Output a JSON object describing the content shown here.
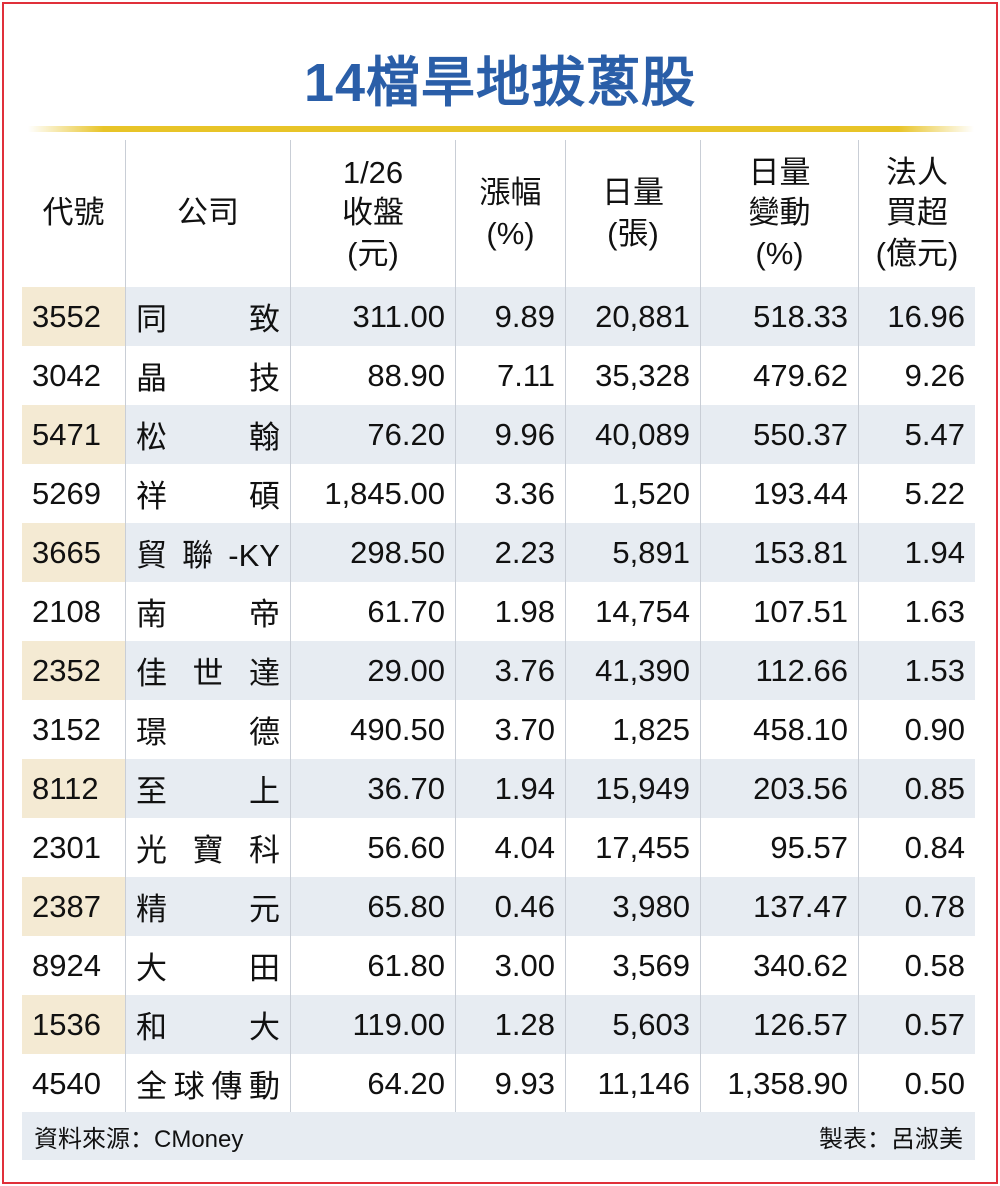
{
  "title": "14檔旱地拔蔥股",
  "table": {
    "header": [
      "代號",
      "公司",
      "1/26\n收盤\n(元)",
      "漲幅\n(%)",
      "日量\n(張)",
      "日量\n變動\n(%)",
      "法人\n買超\n(億元)"
    ],
    "rows": [
      [
        "3552",
        "同 致",
        "311.00",
        "9.89",
        "20,881",
        "518.33",
        "16.96"
      ],
      [
        "3042",
        "晶 技",
        "88.90",
        "7.11",
        "35,328",
        "479.62",
        "9.26"
      ],
      [
        "5471",
        "松 翰",
        "76.20",
        "9.96",
        "40,089",
        "550.37",
        "5.47"
      ],
      [
        "5269",
        "祥 碩",
        "1,845.00",
        "3.36",
        "1,520",
        "193.44",
        "5.22"
      ],
      [
        "3665",
        "貿聯-KY",
        "298.50",
        "2.23",
        "5,891",
        "153.81",
        "1.94"
      ],
      [
        "2108",
        "南 帝",
        "61.70",
        "1.98",
        "14,754",
        "107.51",
        "1.63"
      ],
      [
        "2352",
        "佳 世 達",
        "29.00",
        "3.76",
        "41,390",
        "112.66",
        "1.53"
      ],
      [
        "3152",
        "璟 德",
        "490.50",
        "3.70",
        "1,825",
        "458.10",
        "0.90"
      ],
      [
        "8112",
        "至 上",
        "36.70",
        "1.94",
        "15,949",
        "203.56",
        "0.85"
      ],
      [
        "2301",
        "光 寶 科",
        "56.60",
        "4.04",
        "17,455",
        "95.57",
        "0.84"
      ],
      [
        "2387",
        "精 元",
        "65.80",
        "0.46",
        "3,980",
        "137.47",
        "0.78"
      ],
      [
        "8924",
        "大 田",
        "61.80",
        "3.00",
        "3,569",
        "340.62",
        "0.58"
      ],
      [
        "1536",
        "和 大",
        "119.00",
        "1.28",
        "5,603",
        "126.57",
        "0.57"
      ],
      [
        "4540",
        "全球傳動",
        "64.20",
        "9.93",
        "11,146",
        "1,358.90",
        "0.50"
      ]
    ]
  },
  "footer": {
    "source": "資料來源：CMoney",
    "author": "製表：呂淑美"
  }
}
